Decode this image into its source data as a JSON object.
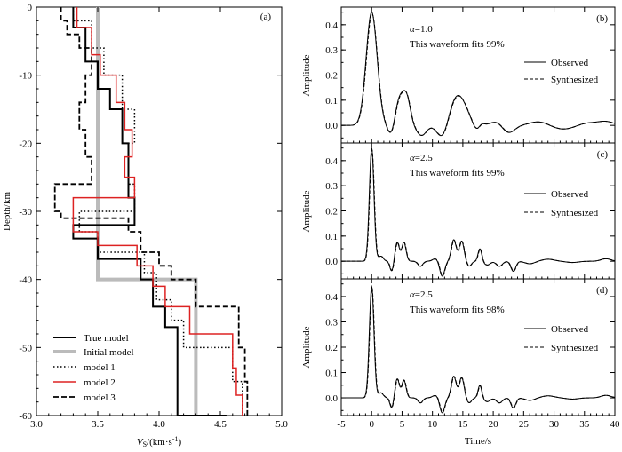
{
  "chart_data": [
    {
      "id": "a",
      "type": "line",
      "panel_label": "(a)",
      "xlabel_main": "V",
      "xlabel_sub": "S",
      "xlabel_rest": "/(km·s",
      "xlabel_sup": "-1",
      "xlabel_close": ")",
      "ylabel": "Depth/km",
      "xlim": [
        3.0,
        5.0
      ],
      "ylim": [
        -60,
        0
      ],
      "xticks": [
        3.0,
        3.5,
        4.0,
        4.5,
        5.0
      ],
      "xtick_labels": [
        "3.0",
        "3.5",
        "4.0",
        "4.5",
        "5.0"
      ],
      "yticks": [
        0,
        -10,
        -20,
        -30,
        -40,
        -50,
        -60
      ],
      "ytick_labels": [
        "0",
        "-10",
        "-20",
        "-30",
        "-40",
        "-50",
        "-60"
      ],
      "legend": [
        "True model",
        "Initial model",
        "model 1",
        "model 2",
        "model 3"
      ],
      "series": [
        {
          "name": "True model",
          "color": "#000000",
          "dash": "solid",
          "v": [
            3.3,
            3.4,
            3.5,
            3.6,
            3.7,
            3.75,
            3.8,
            3.3,
            3.5,
            3.85,
            3.95,
            4.05,
            4.15,
            4.55
          ],
          "d": [
            0,
            -3,
            -8,
            -12,
            -15,
            -20,
            -28,
            -32,
            -34,
            -37,
            -40,
            -44,
            -47,
            -60
          ]
        },
        {
          "name": "Initial model",
          "color": "#bbbbbb",
          "dash": "solid",
          "v": [
            3.5,
            4.3
          ],
          "d": [
            0,
            -40,
            -60
          ]
        },
        {
          "name": "model 1",
          "color": "#000000",
          "dash": "dot",
          "v": [
            3.3,
            3.45,
            3.55,
            3.7,
            3.8,
            3.75,
            3.8,
            3.35,
            3.5,
            3.88,
            3.98,
            4.1,
            4.2,
            4.6,
            4.68,
            4.7
          ],
          "d": [
            0,
            -2,
            -6,
            -10,
            -15,
            -20,
            -26,
            -30,
            -33,
            -36,
            -39,
            -43,
            -46,
            -50,
            -55,
            -60
          ]
        },
        {
          "name": "model 2",
          "color": "#dd2222",
          "dash": "solid",
          "v": [
            3.33,
            3.45,
            3.52,
            3.65,
            3.72,
            3.78,
            3.72,
            3.8,
            3.3,
            3.5,
            3.82,
            3.95,
            4.05,
            4.25,
            4.6,
            4.63,
            4.68
          ],
          "d": [
            0,
            -3,
            -7,
            -10,
            -14,
            -18,
            -22,
            -25,
            -28,
            -33,
            -35,
            -38,
            -41,
            -44,
            -48,
            -53,
            -57,
            -60
          ]
        },
        {
          "name": "model 3",
          "color": "#000000",
          "dash": "dash",
          "v": [
            3.2,
            3.25,
            3.35,
            3.45,
            3.4,
            3.35,
            3.4,
            3.45,
            3.15,
            3.2,
            3.75,
            3.85,
            4.0,
            4.1,
            4.3,
            4.65,
            4.7,
            4.72
          ],
          "d": [
            0,
            -2,
            -4,
            -6,
            -10,
            -14,
            -18,
            -22,
            -26,
            -30,
            -31,
            -33,
            -36,
            -38,
            -40,
            -44,
            -50,
            -55,
            -60
          ]
        }
      ]
    },
    {
      "id": "b",
      "type": "line",
      "panel_label": "(b)",
      "alpha": "=1.0",
      "fit_text": "This waveform fits 99%",
      "ylabel": "Amplitude",
      "xlim": [
        -5,
        40
      ],
      "ylim": [
        -0.07,
        0.47
      ],
      "yticks": [
        0,
        0.1,
        0.2,
        0.3,
        0.4
      ],
      "ytick_labels": [
        "0.0",
        "0.1",
        "0.2",
        "0.3",
        "0.4"
      ],
      "legend": [
        "Observed",
        "Synthesized"
      ],
      "components": [
        {
          "t": 0,
          "a": 0.45,
          "w": 0.9
        },
        {
          "t": 3.3,
          "a": -0.05,
          "w": 0.6
        },
        {
          "t": 4.6,
          "a": 0.11,
          "w": 0.8
        },
        {
          "t": 5.8,
          "a": 0.09,
          "w": 0.6
        },
        {
          "t": 8.2,
          "a": -0.04,
          "w": 0.8
        },
        {
          "t": 11.7,
          "a": -0.06,
          "w": 0.9
        },
        {
          "t": 14.2,
          "a": 0.12,
          "w": 1.4
        },
        {
          "t": 17.4,
          "a": -0.03,
          "w": 0.7
        },
        {
          "t": 18.0,
          "a": 0.02,
          "w": 0.5
        },
        {
          "t": 20.5,
          "a": 0.015,
          "w": 1.0
        },
        {
          "t": 22.5,
          "a": -0.03,
          "w": 1.0
        },
        {
          "t": 27.5,
          "a": 0.015,
          "w": 1.5
        },
        {
          "t": 31.5,
          "a": -0.015,
          "w": 1.8
        },
        {
          "t": 35.5,
          "a": 0.01,
          "w": 1.5
        },
        {
          "t": 38.5,
          "a": 0.015,
          "w": 1.3
        }
      ]
    },
    {
      "id": "c",
      "type": "line",
      "panel_label": "(c)",
      "alpha": "=2.5",
      "fit_text": "This waveform fits 99%",
      "ylabel": "Amplitude",
      "xlim": [
        -5,
        40
      ],
      "ylim": [
        -0.07,
        0.47
      ],
      "yticks": [
        0,
        0.1,
        0.2,
        0.3,
        0.4
      ],
      "ytick_labels": [
        "0.0",
        "0.1",
        "0.2",
        "0.3",
        "0.4"
      ],
      "legend": [
        "Observed",
        "Synthesized"
      ],
      "components": [
        {
          "t": 0,
          "a": 0.45,
          "w": 0.38
        },
        {
          "t": 1.5,
          "a": 0.02,
          "w": 0.4
        },
        {
          "t": 3.3,
          "a": -0.04,
          "w": 0.3
        },
        {
          "t": 4.2,
          "a": 0.075,
          "w": 0.35
        },
        {
          "t": 5.3,
          "a": 0.075,
          "w": 0.35
        },
        {
          "t": 8.0,
          "a": -0.02,
          "w": 0.4
        },
        {
          "t": 10.5,
          "a": 0.01,
          "w": 0.5
        },
        {
          "t": 11.6,
          "a": -0.06,
          "w": 0.4
        },
        {
          "t": 13.5,
          "a": 0.085,
          "w": 0.4
        },
        {
          "t": 14.8,
          "a": 0.08,
          "w": 0.4
        },
        {
          "t": 16.0,
          "a": -0.02,
          "w": 0.4
        },
        {
          "t": 17.8,
          "a": 0.05,
          "w": 0.3
        },
        {
          "t": 19.0,
          "a": -0.015,
          "w": 0.5
        },
        {
          "t": 21.0,
          "a": -0.02,
          "w": 0.5
        },
        {
          "t": 23.3,
          "a": -0.04,
          "w": 0.4
        },
        {
          "t": 26.0,
          "a": -0.01,
          "w": 0.8
        },
        {
          "t": 29.0,
          "a": 0.008,
          "w": 1.0
        },
        {
          "t": 33.0,
          "a": -0.005,
          "w": 1.0
        },
        {
          "t": 38.5,
          "a": 0.01,
          "w": 0.8
        }
      ]
    },
    {
      "id": "d",
      "type": "line",
      "panel_label": "(d)",
      "alpha": "=2.5",
      "fit_text": "This waveform fits 98%",
      "ylabel": "Amplitude",
      "xlabel": "Time/s",
      "xlim": [
        -5,
        40
      ],
      "ylim": [
        -0.07,
        0.47
      ],
      "xticks": [
        -5,
        0,
        5,
        10,
        15,
        20,
        25,
        30,
        35,
        40
      ],
      "xtick_labels": [
        "-5",
        "0",
        "5",
        "10",
        "15",
        "20",
        "25",
        "30",
        "35",
        "40"
      ],
      "yticks": [
        0,
        0.1,
        0.2,
        0.3,
        0.4
      ],
      "ytick_labels": [
        "0.0",
        "0.1",
        "0.2",
        "0.3",
        "0.4"
      ],
      "legend": [
        "Observed",
        "Synthesized"
      ],
      "components": [
        {
          "t": 0,
          "a": 0.44,
          "w": 0.38
        },
        {
          "t": 1.5,
          "a": 0.02,
          "w": 0.4
        },
        {
          "t": 3.3,
          "a": -0.04,
          "w": 0.3
        },
        {
          "t": 4.2,
          "a": 0.075,
          "w": 0.35
        },
        {
          "t": 5.3,
          "a": 0.07,
          "w": 0.35
        },
        {
          "t": 8.0,
          "a": -0.02,
          "w": 0.4
        },
        {
          "t": 10.5,
          "a": 0.01,
          "w": 0.5
        },
        {
          "t": 11.6,
          "a": -0.06,
          "w": 0.4
        },
        {
          "t": 13.5,
          "a": 0.085,
          "w": 0.4
        },
        {
          "t": 14.8,
          "a": 0.08,
          "w": 0.4
        },
        {
          "t": 16.0,
          "a": -0.02,
          "w": 0.4
        },
        {
          "t": 17.8,
          "a": 0.05,
          "w": 0.3
        },
        {
          "t": 19.0,
          "a": -0.015,
          "w": 0.5
        },
        {
          "t": 21.0,
          "a": -0.02,
          "w": 0.5
        },
        {
          "t": 23.3,
          "a": -0.04,
          "w": 0.4
        },
        {
          "t": 26.0,
          "a": -0.01,
          "w": 0.8
        },
        {
          "t": 29.0,
          "a": 0.008,
          "w": 1.0
        },
        {
          "t": 33.0,
          "a": -0.005,
          "w": 1.0
        },
        {
          "t": 38.5,
          "a": 0.01,
          "w": 0.8
        }
      ]
    }
  ]
}
